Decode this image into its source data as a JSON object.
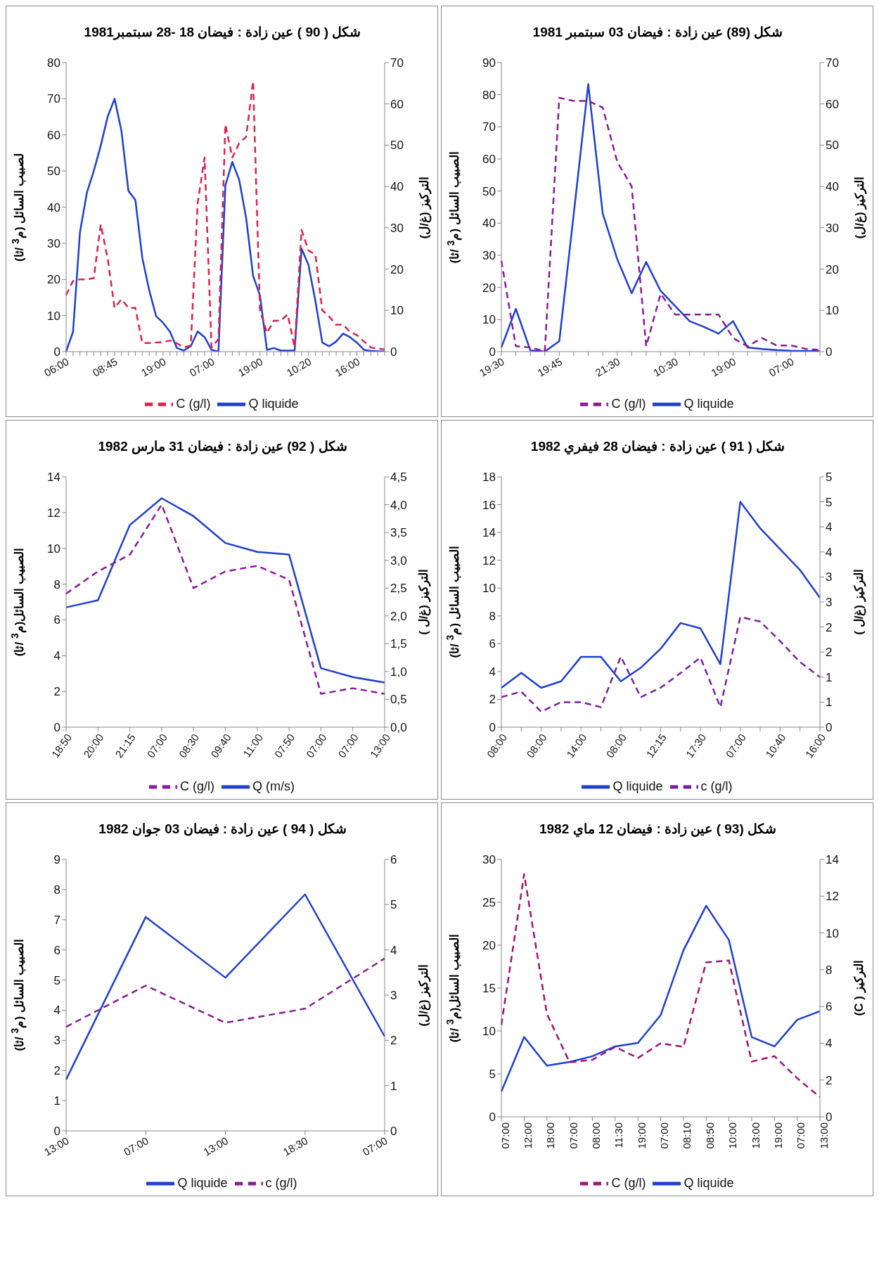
{
  "chart_data": [
    {
      "type": "line",
      "title": "شكل ( 90 ) عين زادة : فيضان 18 -28 سبتمبر1981",
      "ylabel": "لصبيب السائل (م$^{3}$ /ثا)",
      "y2label": "التركيز (غ/ل)",
      "categories": [
        "06:00",
        null,
        null,
        null,
        null,
        null,
        null,
        "08:45",
        null,
        null,
        null,
        null,
        null,
        null,
        "19:00",
        null,
        null,
        null,
        null,
        null,
        null,
        "07:00",
        null,
        null,
        null,
        null,
        null,
        null,
        "19:00",
        null,
        null,
        null,
        null,
        null,
        null,
        "10:20",
        null,
        null,
        null,
        null,
        null,
        null,
        "16:00",
        null,
        null,
        null,
        null
      ],
      "series": [
        {
          "name": "Q liquide",
          "color": "#1f3fd0",
          "line_style": "solid",
          "values": [
            0,
            5.5,
            33,
            44,
            50,
            57,
            65,
            70,
            61,
            44.5,
            42,
            26,
            17,
            9.8,
            8,
            5.5,
            1,
            0.3,
            1.5,
            5.6,
            4,
            0.5,
            0,
            46,
            52.5,
            47.5,
            37,
            21,
            15.5,
            0.5,
            1,
            0.3,
            0.3,
            0.3,
            28.5,
            24,
            14,
            2.5,
            1.5,
            2.8,
            5,
            4,
            2.5,
            0.5,
            0.2,
            0.1,
            0
          ]
        },
        {
          "name": "C (g/l)",
          "color": "#e0204a",
          "line_style": "dashed",
          "axis": "y2",
          "values": [
            13.7,
            17.1,
            17.5,
            17.5,
            17.8,
            30.8,
            22.6,
            10.6,
            12.7,
            10.6,
            10.6,
            2.1,
            2.1,
            2.2,
            2.3,
            2.7,
            2,
            1,
            1.5,
            36,
            47,
            1,
            3,
            55,
            47,
            50.5,
            52,
            65.5,
            10,
            4.5,
            7.5,
            7.5,
            9,
            1,
            29.5,
            24.5,
            23.5,
            10,
            8.5,
            6.5,
            6.5,
            4.8,
            4,
            2.5,
            1,
            0.8,
            0.5
          ]
        }
      ],
      "ylim": [
        0,
        80
      ],
      "yticks": [
        0,
        10,
        20,
        30,
        40,
        50,
        60,
        70,
        80
      ],
      "y2lim": [
        0,
        70
      ],
      "y2ticks": [
        0,
        10,
        20,
        30,
        40,
        50,
        60,
        70
      ],
      "legend": "bottom"
    },
    {
      "type": "line",
      "title": "شكل (89) عين زادة : فيضان  03 سبتمبر 1981",
      "ylabel": "الصبيب السائل (م$^{3}$ /ثا)",
      "y2label": "التركيز (غ/ل)",
      "categories": [
        "19:30",
        null,
        null,
        null,
        "19:45",
        null,
        null,
        null,
        "21:30",
        null,
        null,
        null,
        "10:30",
        null,
        null,
        null,
        "19:00",
        null,
        null,
        null,
        "07:00",
        null,
        null
      ],
      "series": [
        {
          "name": "Q liquide",
          "color": "#1f3fd0",
          "line_style": "solid",
          "values": [
            1.3,
            13.3,
            0.4,
            0,
            3.3,
            43,
            83.3,
            43,
            28.8,
            18.2,
            27.9,
            18.9,
            14.2,
            9.5,
            7.7,
            5.6,
            9.5,
            1.3,
            0.8,
            0.5,
            0.3,
            0.2,
            0.1
          ]
        },
        {
          "name": "C (g/l)",
          "color": "#8a1a9a",
          "line_style": "dashed",
          "axis": "y2",
          "values": [
            22,
            1.3,
            1,
            0.1,
            61.5,
            60.7,
            60.7,
            59.1,
            46,
            40,
            1.3,
            14,
            9,
            9,
            9,
            9,
            3.3,
            1.3,
            3.3,
            1.5,
            1.5,
            0.7,
            0.4
          ]
        }
      ],
      "ylim": [
        0,
        90
      ],
      "yticks": [
        0,
        10,
        20,
        30,
        40,
        50,
        60,
        70,
        80,
        90
      ],
      "y2lim": [
        0,
        70
      ],
      "y2ticks": [
        0,
        10,
        20,
        30,
        40,
        50,
        60,
        70
      ],
      "legend": "bottom"
    },
    {
      "type": "line",
      "title": "شكل ( 92) عين زادة : فيضان 31 مارس 1982",
      "ylabel": "الصبيب السائل(م$^{3}$ /ثا)",
      "y2label": "التركيز (غ/ل )",
      "categories": [
        "18:50",
        "20:00",
        "21:15",
        "07:00",
        "08:30",
        "09:40",
        "11:00",
        "07:50",
        "07:00",
        "07:00",
        "13:00"
      ],
      "series": [
        {
          "name": "Q (m/s)",
          "color": "#1f3fd0",
          "line_style": "solid",
          "values": [
            6.7,
            7.1,
            11.3,
            12.8,
            11.8,
            10.3,
            9.8,
            9.65,
            3.3,
            2.8,
            2.5
          ]
        },
        {
          "name": "C  (g/l)",
          "color": "#8a1a9a",
          "line_style": "dashed",
          "axis": "y2",
          "values": [
            2.4,
            2.8,
            3.1,
            4.0,
            2.5,
            2.8,
            2.9,
            2.65,
            0.6,
            0.7,
            0.6
          ]
        }
      ],
      "ylim": [
        0,
        14
      ],
      "yticks": [
        0,
        2,
        4,
        6,
        8,
        10,
        12,
        14
      ],
      "y2lim": [
        0,
        4.5
      ],
      "y2ticks": [
        {
          "value": 0,
          "label": "0,0"
        },
        {
          "value": 0.5,
          "label": "0,5"
        },
        {
          "value": 1,
          "label": "1,0"
        },
        {
          "value": 1.5,
          "label": "1,5"
        },
        {
          "value": 2,
          "label": "2,0"
        },
        {
          "value": 2.5,
          "label": "2,5"
        },
        {
          "value": 3,
          "label": "3,0"
        },
        {
          "value": 3.5,
          "label": "3,5"
        },
        {
          "value": 4,
          "label": "4,0"
        },
        {
          "value": 4.5,
          "label": "4,5"
        }
      ],
      "legend": "bottom"
    },
    {
      "type": "line",
      "title": "شكل ( 91 ) عين زادة : فيضان 28 فيفري 1982",
      "ylabel": "الصبيب السائل (م$^{3}$ /ثا)",
      "y2label": "التركيز (غ/ل )",
      "categories": [
        "08:00",
        null,
        "08:00",
        null,
        "14:00",
        null,
        "08:00",
        null,
        "12:15",
        null,
        "17:30",
        null,
        "07:00",
        null,
        "10:40",
        null,
        "16:00"
      ],
      "series": [
        {
          "name": "Q liquide",
          "color": "#1f3fd0",
          "line_style": "solid",
          "values": [
            2.83,
            3.9,
            2.83,
            3.3,
            5.05,
            5.05,
            3.3,
            4.27,
            5.64,
            7.49,
            7.1,
            4.53,
            16.2,
            14.3,
            12.8,
            11.3,
            9.3
          ]
        },
        {
          "name": "c (g/l)",
          "color": "#7a1fa0",
          "line_style": "dashed",
          "axis": "y2",
          "values": [
            0.6,
            0.71,
            0.31,
            0.5,
            0.5,
            0.4,
            1.41,
            0.6,
            0.79,
            1.08,
            1.39,
            0.4,
            2.2,
            2.11,
            1.72,
            1.3,
            1.0
          ]
        }
      ],
      "ylim": [
        0,
        18
      ],
      "yticks": [
        0,
        2,
        4,
        6,
        8,
        10,
        12,
        14,
        16,
        18
      ],
      "y2lim": [
        0,
        5
      ],
      "y2ticks": [
        0,
        {
          "value": 0.5,
          "label": "1"
        },
        1,
        {
          "value": 1.5,
          "label": "2"
        },
        2,
        {
          "value": 2.5,
          "label": "3"
        },
        3,
        {
          "value": 3.5,
          "label": "4"
        },
        4,
        {
          "value": 4.5,
          "label": "5"
        },
        5
      ],
      "legend": "bottom"
    },
    {
      "type": "line",
      "title": "شكل ( 94 ) عين زادة : فيضان 03 جوان 1982",
      "ylabel": "الصبيب السائل (م$^{3}$ /ثا)",
      "y2label": "التركيز (غ/ل)",
      "categories": [
        "13:00",
        "07:00",
        "13:00",
        "18:30",
        "07:00"
      ],
      "series": [
        {
          "name": "Q liquide",
          "color": "#1f3fd0",
          "line_style": "solid",
          "values": [
            1.7,
            7.09,
            5.08,
            7.84,
            3.13
          ]
        },
        {
          "name": "c (g/l)",
          "color": "#8a1a9a",
          "line_style": "dashed",
          "axis": "y2",
          "values": [
            2.3,
            3.21,
            2.39,
            2.7,
            3.81
          ]
        }
      ],
      "ylim": [
        0,
        9
      ],
      "yticks": [
        0,
        1,
        2,
        3,
        4,
        5,
        6,
        7,
        8,
        9
      ],
      "y2lim": [
        0,
        6
      ],
      "y2ticks": [
        0,
        1,
        2,
        3,
        4,
        5,
        6
      ],
      "legend": "bottom"
    },
    {
      "type": "line",
      "title": "شكل (93 ) عين زادة : فيضان 12 ماي 1982",
      "ylabel": "الصبيب السائل(م$^{3}$ /ثا)",
      "y2label": "التركيز ( C)",
      "categories": [
        "07:00",
        "12:00",
        "18:00",
        "07:00",
        "08:00",
        "11:30",
        "19:00",
        "07:00",
        "08:10",
        "08:50",
        "10:00",
        "13:00",
        "19:00",
        "07:00",
        "13:00"
      ],
      "series": [
        {
          "name": "Q liquide",
          "color": "#1f3fd0",
          "line_style": "solid",
          "values": [
            2.94,
            9.3,
            5.97,
            6.4,
            7.06,
            8.2,
            8.6,
            11.85,
            19.4,
            24.6,
            20.6,
            9.3,
            8.2,
            11.3,
            12.3
          ]
        },
        {
          "name": "C (g/l)",
          "color": "#a0127a",
          "line_style": "dashed",
          "axis": "y2",
          "values": [
            5.0,
            13.2,
            5.6,
            2.96,
            3.1,
            3.8,
            3.2,
            4.0,
            3.8,
            8.4,
            8.5,
            3.0,
            3.3,
            2.1,
            1.07
          ]
        }
      ],
      "ylim": [
        0,
        30
      ],
      "yticks": [
        0,
        5,
        10,
        15,
        20,
        25,
        30
      ],
      "y2lim": [
        0,
        14
      ],
      "y2ticks": [
        0,
        2,
        4,
        6,
        8,
        10,
        12,
        14
      ],
      "legend": "bottom"
    }
  ]
}
